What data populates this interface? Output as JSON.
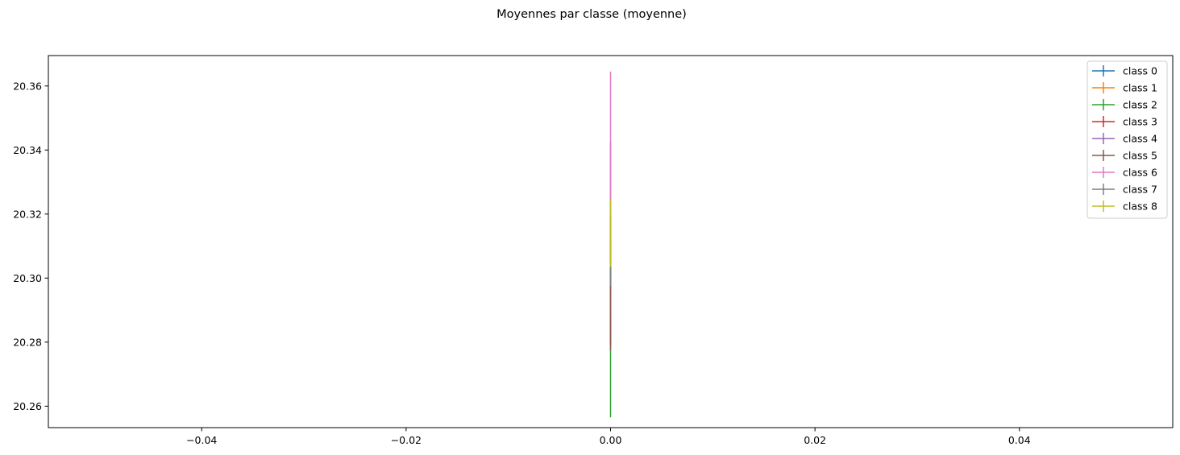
{
  "chart_data": {
    "type": "line",
    "title": "Moyennes par classe (moyenne)",
    "xlabel": "",
    "ylabel": "",
    "xlim": [
      -0.055,
      0.055
    ],
    "ylim": [
      20.2533,
      20.3695
    ],
    "xticks": [
      -0.04,
      -0.02,
      0.0,
      0.02,
      0.04
    ],
    "xtick_labels": [
      "−0.04",
      "−0.02",
      "0.00",
      "0.02",
      "0.04"
    ],
    "yticks": [
      20.26,
      20.28,
      20.3,
      20.32,
      20.34,
      20.36
    ],
    "ytick_labels": [
      "20.26",
      "20.28",
      "20.30",
      "20.32",
      "20.34",
      "20.36"
    ],
    "grid": false,
    "legend_position": "top-right",
    "error_bars": true,
    "series": [
      {
        "name": "class 0",
        "color": "#1f77b4",
        "x": [
          0.0
        ],
        "y": [
          20.3235
        ],
        "yerr": [
          0.019
        ]
      },
      {
        "name": "class 1",
        "color": "#ff7f0e",
        "x": [
          0.0
        ],
        "y": [
          20.307
        ],
        "yerr": [
          0.012
        ]
      },
      {
        "name": "class 2",
        "color": "#2ca02c",
        "x": [
          0.0
        ],
        "y": [
          20.2725
        ],
        "yerr": [
          0.016
        ]
      },
      {
        "name": "class 3",
        "color": "#d62728",
        "x": [
          0.0
        ],
        "y": [
          20.291
        ],
        "yerr": [
          0.012
        ]
      },
      {
        "name": "class 4",
        "color": "#9467bd",
        "x": [
          0.0
        ],
        "y": [
          20.3
        ],
        "yerr": [
          0.012
        ]
      },
      {
        "name": "class 5",
        "color": "#8c564b",
        "x": [
          0.0
        ],
        "y": [
          20.2905
        ],
        "yerr": [
          0.013
        ]
      },
      {
        "name": "class 6",
        "color": "#e377c2",
        "x": [
          0.0
        ],
        "y": [
          20.3445
        ],
        "yerr": [
          0.02
        ]
      },
      {
        "name": "class 7",
        "color": "#7f7f7f",
        "x": [
          0.0
        ],
        "y": [
          20.3085
        ],
        "yerr": [
          0.011
        ]
      },
      {
        "name": "class 8",
        "color": "#bcbd22",
        "x": [
          0.0
        ],
        "y": [
          20.314
        ],
        "yerr": [
          0.0105
        ]
      }
    ]
  }
}
